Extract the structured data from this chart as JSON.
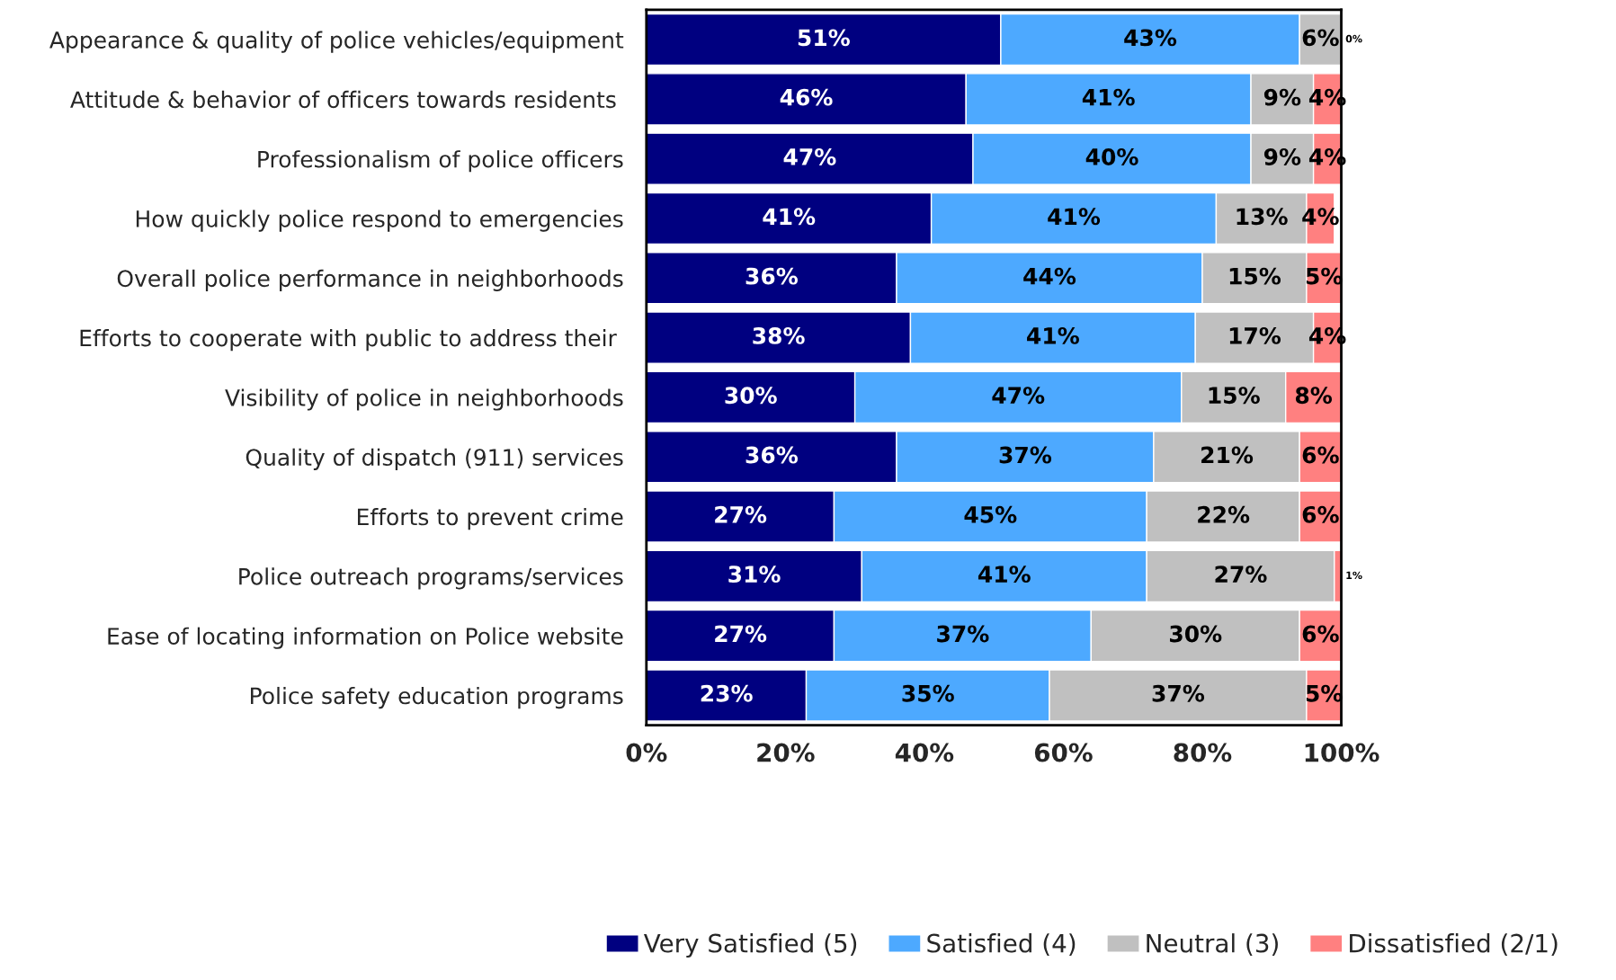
{
  "chart_data": {
    "type": "bar",
    "orientation": "horizontal",
    "stacked": true,
    "categories": [
      "Appearance & quality of police vehicles/equipment",
      "Attitude & behavior of officers towards residents ",
      "Professionalism of police officers",
      "How quickly police respond to emergencies",
      "Overall police performance in neighborhoods",
      "Efforts to cooperate with public to address their ",
      "Visibility of police in neighborhoods",
      "Quality of dispatch (911) services",
      "Efforts to prevent crime",
      "Police outreach programs/services",
      "Ease of locating information on Police website",
      "Police safety education programs"
    ],
    "series": [
      {
        "name": "Very Satisfied (5)",
        "color": "#000080",
        "values": [
          51,
          46,
          47,
          41,
          36,
          38,
          30,
          36,
          27,
          31,
          27,
          23
        ],
        "value_labels": [
          "51%",
          "46%",
          "47%",
          "41%",
          "36%",
          "38%",
          "30%",
          "36%",
          "27%",
          "31%",
          "27%",
          "23%"
        ]
      },
      {
        "name": "Satisfied (4)",
        "color": "#4da9ff",
        "values": [
          43,
          41,
          40,
          41,
          44,
          41,
          47,
          37,
          45,
          41,
          37,
          35
        ],
        "value_labels": [
          "43%",
          "41%",
          "40%",
          "41%",
          "44%",
          "41%",
          "47%",
          "37%",
          "45%",
          "41%",
          "37%",
          "35%"
        ]
      },
      {
        "name": "Neutral (3)",
        "color": "#c0c0c0",
        "values": [
          6,
          9,
          9,
          13,
          15,
          17,
          15,
          21,
          22,
          27,
          30,
          37
        ],
        "value_labels": [
          "6%",
          "9%",
          "9%",
          "13%",
          "15%",
          "17%",
          "15%",
          "21%",
          "22%",
          "27%",
          "30%",
          "37%"
        ]
      },
      {
        "name": "Dissatisfied (2/1)",
        "color": "#ff8080",
        "values": [
          0.4,
          4,
          4,
          4,
          5,
          4,
          8,
          6,
          6,
          1,
          6,
          5
        ],
        "value_labels": [
          "0%",
          "4%",
          "4%",
          "4%",
          "5%",
          "4%",
          "8%",
          "6%",
          "6%",
          "1%",
          "6%",
          "5%"
        ]
      }
    ],
    "xlim": [
      0,
      100
    ],
    "xticks": [
      {
        "value": 0,
        "label": "0%"
      },
      {
        "value": 20,
        "label": "20%"
      },
      {
        "value": 40,
        "label": "40%"
      },
      {
        "value": 60,
        "label": "60%"
      },
      {
        "value": 80,
        "label": "80%"
      },
      {
        "value": 100,
        "label": "100%"
      }
    ],
    "grid": false,
    "legend": "bottom"
  }
}
